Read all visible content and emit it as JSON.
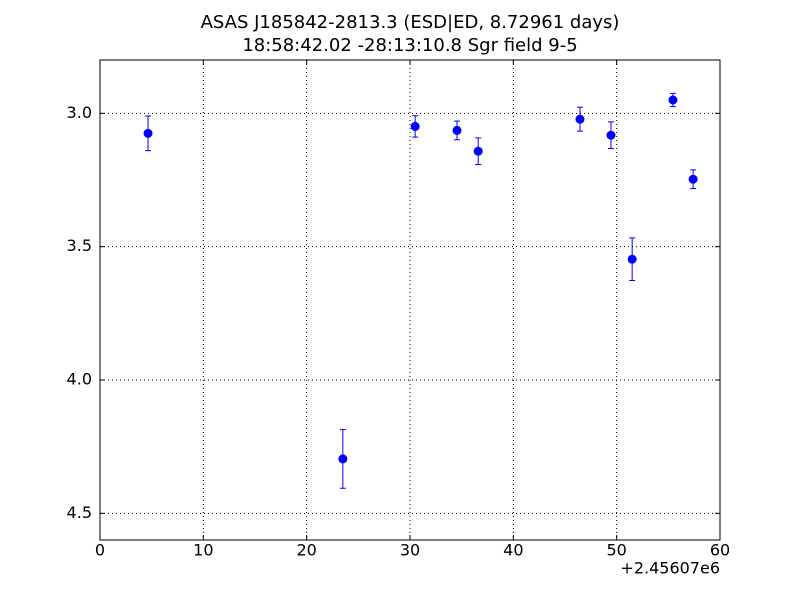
{
  "chart_data": {
    "type": "errorbar",
    "title": "ASAS J185842-2813.3 (ESD|ED, 8.72961 days)",
    "subtitle": "18:58:42.02 -28:13:10.8 Sgr field 9-5",
    "x_offset_label": "+2.45607e6",
    "color": "#0000ff",
    "x": [
      4.65,
      23.5,
      30.5,
      34.55,
      36.6,
      46.45,
      49.45,
      51.5,
      55.45,
      57.4
    ],
    "values": [
      3.075,
      4.296,
      3.049,
      3.064,
      3.142,
      3.022,
      3.082,
      3.547,
      2.95,
      3.247
    ],
    "errors": [
      0.065,
      0.11,
      0.04,
      0.035,
      0.05,
      0.045,
      0.05,
      0.08,
      0.025,
      0.035
    ],
    "xlim": [
      0,
      60
    ],
    "xticks": [
      0,
      10,
      20,
      30,
      40,
      50,
      60
    ],
    "ylim": [
      4.6,
      2.8
    ],
    "yticks": [
      {
        "value": 3.0,
        "label": "3.0"
      },
      {
        "value": 3.5,
        "label": "3.5"
      },
      {
        "value": 4.0,
        "label": "4.0"
      },
      {
        "value": 4.5,
        "label": "4.5"
      }
    ],
    "grid": true
  }
}
